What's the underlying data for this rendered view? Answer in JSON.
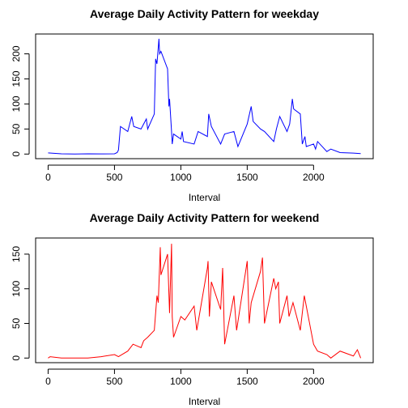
{
  "chart_data": [
    {
      "type": "line",
      "title": "Average Daily Activity Pattern for weekday",
      "x_label": "Interval",
      "color": "#0000ff",
      "x": [
        0,
        100,
        200,
        300,
        400,
        500,
        520,
        530,
        545,
        600,
        615,
        630,
        645,
        700,
        720,
        740,
        750,
        800,
        810,
        820,
        835,
        840,
        850,
        900,
        910,
        915,
        930,
        935,
        945,
        1000,
        1010,
        1020,
        1100,
        1130,
        1200,
        1210,
        1230,
        1300,
        1330,
        1400,
        1430,
        1500,
        1530,
        1545,
        1600,
        1630,
        1700,
        1720,
        1745,
        1800,
        1820,
        1840,
        1850,
        1900,
        1915,
        1935,
        1945,
        2000,
        2015,
        2030,
        2100,
        2130,
        2200,
        2300,
        2355
      ],
      "values": [
        2.3,
        0.5,
        0,
        0.5,
        0.2,
        0.5,
        3,
        8,
        55,
        45,
        60,
        75,
        55,
        50,
        60,
        70,
        50,
        80,
        190,
        180,
        230,
        200,
        205,
        170,
        95,
        110,
        45,
        20,
        40,
        30,
        45,
        25,
        20,
        45,
        35,
        80,
        55,
        20,
        40,
        45,
        15,
        60,
        95,
        65,
        50,
        45,
        25,
        50,
        75,
        45,
        60,
        110,
        90,
        80,
        20,
        35,
        15,
        20,
        10,
        25,
        5,
        10,
        3,
        2,
        1
      ],
      "xlim": [
        -94.2,
        2449.2
      ],
      "xticks": [
        0,
        500,
        1000,
        1500,
        2000
      ],
      "ylim": [
        -9.2,
        239.6
      ],
      "yticks": [
        0,
        50,
        100,
        150,
        200
      ]
    },
    {
      "type": "line",
      "title": "Average Daily Activity Pattern for weekend",
      "x_label": "Interval",
      "color": "#ff0000",
      "x": [
        0,
        15,
        100,
        200,
        300,
        400,
        500,
        530,
        600,
        640,
        700,
        720,
        750,
        800,
        820,
        830,
        845,
        850,
        900,
        915,
        930,
        935,
        945,
        1000,
        1030,
        1100,
        1120,
        1200,
        1205,
        1215,
        1230,
        1300,
        1315,
        1330,
        1400,
        1420,
        1500,
        1515,
        1530,
        1600,
        1615,
        1630,
        1700,
        1715,
        1735,
        1745,
        1800,
        1815,
        1845,
        1900,
        1930,
        2000,
        2015,
        2030,
        2100,
        2130,
        2200,
        2300,
        2330,
        2355
      ],
      "values": [
        0,
        2,
        0,
        0,
        0,
        2,
        5,
        2,
        10,
        20,
        15,
        25,
        30,
        40,
        90,
        80,
        160,
        120,
        150,
        65,
        165,
        60,
        30,
        60,
        55,
        75,
        40,
        130,
        140,
        60,
        110,
        70,
        130,
        20,
        90,
        40,
        140,
        50,
        80,
        125,
        145,
        50,
        115,
        100,
        110,
        50,
        90,
        60,
        80,
        40,
        90,
        20,
        15,
        10,
        5,
        0,
        10,
        3,
        12,
        0
      ],
      "xlim": [
        -94.2,
        2449.2
      ],
      "xticks": [
        0,
        500,
        1000,
        1500,
        2000
      ],
      "ylim": [
        -6.66,
        173.3
      ],
      "yticks": [
        0,
        50,
        100,
        150
      ]
    }
  ]
}
